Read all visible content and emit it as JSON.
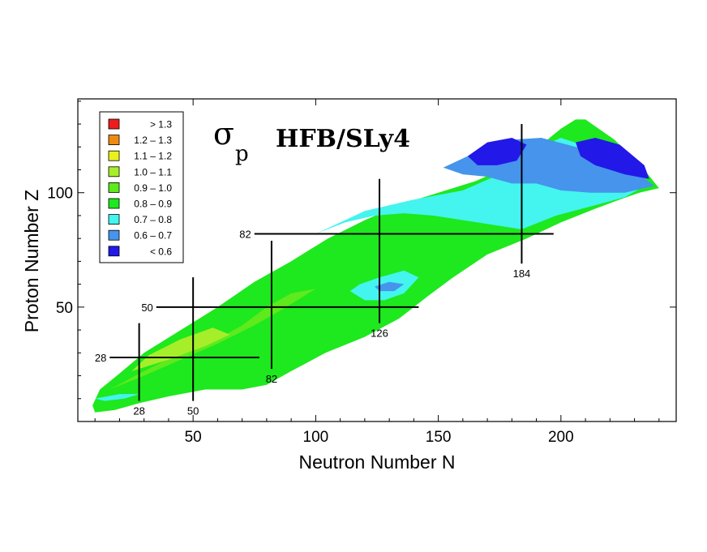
{
  "chart_data": {
    "type": "heatmap",
    "title_symbol": "σ",
    "title_subscript": "p",
    "title_text": "HFB/SLy4",
    "xlabel": "Neutron Number N",
    "ylabel": "Proton Number Z",
    "xlim": [
      3,
      247
    ],
    "ylim": [
      0,
      141
    ],
    "xticks": [
      50,
      100,
      150,
      200
    ],
    "yticks": [
      50,
      100
    ],
    "legend": [
      {
        "label": "> 1.3",
        "color": "#ee1c1c"
      },
      {
        "label": "1.2 – 1.3",
        "color": "#ee8a12"
      },
      {
        "label": "1.1 – 1.2",
        "color": "#eaf01e"
      },
      {
        "label": "1.0 – 1.1",
        "color": "#a6ee2a"
      },
      {
        "label": "0.9 – 1.0",
        "color": "#5eea1c"
      },
      {
        "label": "0.8 – 0.9",
        "color": "#1ee81e"
      },
      {
        "label": "0.7 – 0.8",
        "color": "#44f4ee"
      },
      {
        "label": "0.6 – 0.7",
        "color": "#4694ec"
      },
      {
        "label": "< 0.6",
        "color": "#2218e8"
      }
    ],
    "magic_lines": [
      {
        "orientation": "vertical",
        "value": 28,
        "label": "28",
        "from": 9,
        "to": 43
      },
      {
        "orientation": "vertical",
        "value": 50,
        "label": "50",
        "from": 9,
        "to": 63
      },
      {
        "orientation": "vertical",
        "value": 82,
        "label": "82",
        "from": 23,
        "to": 79
      },
      {
        "orientation": "vertical",
        "value": 126,
        "label": "126",
        "from": 43,
        "to": 106
      },
      {
        "orientation": "vertical",
        "value": 184,
        "label": "184",
        "from": 69,
        "to": 130
      },
      {
        "orientation": "horizontal",
        "value": 28,
        "label": "28",
        "from": 16,
        "to": 77
      },
      {
        "orientation": "horizontal",
        "value": 50,
        "label": "50",
        "from": 35,
        "to": 142
      },
      {
        "orientation": "horizontal",
        "value": 82,
        "label": "82",
        "from": 75,
        "to": 197
      }
    ],
    "regions": [
      {
        "value_bin": "0.8 – 0.9",
        "color": "#1ee81e",
        "outline": [
          [
            9,
            7
          ],
          [
            12,
            14
          ],
          [
            20,
            21
          ],
          [
            30,
            30
          ],
          [
            45,
            40
          ],
          [
            60,
            50
          ],
          [
            75,
            61
          ],
          [
            90,
            70
          ],
          [
            105,
            80
          ],
          [
            120,
            88
          ],
          [
            135,
            95
          ],
          [
            150,
            100
          ],
          [
            165,
            105
          ],
          [
            180,
            112
          ],
          [
            192,
            121
          ],
          [
            200,
            128
          ],
          [
            206,
            132
          ],
          [
            210,
            132
          ],
          [
            222,
            123
          ],
          [
            234,
            110
          ],
          [
            240,
            102
          ],
          [
            232,
            100
          ],
          [
            224,
            97
          ],
          [
            214,
            93
          ],
          [
            200,
            87
          ],
          [
            186,
            80
          ],
          [
            170,
            73
          ],
          [
            156,
            63
          ],
          [
            146,
            55
          ],
          [
            134,
            45
          ],
          [
            120,
            37
          ],
          [
            104,
            30
          ],
          [
            90,
            22
          ],
          [
            80,
            16
          ],
          [
            70,
            14
          ],
          [
            55,
            14
          ],
          [
            40,
            11
          ],
          [
            28,
            8
          ],
          [
            18,
            5
          ],
          [
            10,
            4
          ]
        ]
      },
      {
        "value_bin": "0.9 – 1.0",
        "color": "#5eea1c",
        "outline": [
          [
            16,
            14
          ],
          [
            30,
            20
          ],
          [
            45,
            27
          ],
          [
            60,
            34
          ],
          [
            75,
            42
          ],
          [
            88,
            50
          ],
          [
            100,
            58
          ],
          [
            110,
            64
          ],
          [
            100,
            58
          ],
          [
            90,
            56
          ],
          [
            80,
            50
          ],
          [
            70,
            42
          ],
          [
            60,
            36
          ],
          [
            45,
            30
          ],
          [
            30,
            22
          ]
        ]
      },
      {
        "value_bin": "1.0 – 1.1",
        "color": "#a6ee2a",
        "outline": [
          [
            25,
            22
          ],
          [
            40,
            27
          ],
          [
            55,
            33
          ],
          [
            65,
            38
          ],
          [
            58,
            41
          ],
          [
            45,
            36
          ],
          [
            32,
            29
          ]
        ]
      },
      {
        "value_bin": "0.7 – 0.8",
        "color": "#44f4ee",
        "outline": [
          [
            100,
            82
          ],
          [
            120,
            92
          ],
          [
            140,
            97
          ],
          [
            160,
            101
          ],
          [
            175,
            108
          ],
          [
            188,
            118
          ],
          [
            200,
            124
          ],
          [
            214,
            119
          ],
          [
            224,
            112
          ],
          [
            236,
            104
          ],
          [
            226,
            98
          ],
          [
            212,
            94
          ],
          [
            198,
            90
          ],
          [
            184,
            84
          ],
          [
            172,
            86
          ],
          [
            160,
            88
          ],
          [
            148,
            90
          ],
          [
            136,
            91
          ],
          [
            124,
            90
          ],
          [
            112,
            87
          ]
        ]
      },
      {
        "value_bin": "0.7 – 0.8",
        "color": "#44f4ee",
        "outline": [
          [
            118,
            60
          ],
          [
            126,
            63
          ],
          [
            136,
            66
          ],
          [
            142,
            63
          ],
          [
            136,
            56
          ],
          [
            128,
            53
          ],
          [
            120,
            53
          ],
          [
            114,
            57
          ]
        ]
      },
      {
        "value_bin": "0.7 – 0.8",
        "color": "#44f4ee",
        "outline": [
          [
            10,
            10
          ],
          [
            20,
            12
          ],
          [
            28,
            12
          ],
          [
            22,
            10
          ],
          [
            14,
            9
          ]
        ]
      },
      {
        "value_bin": "0.6 – 0.7",
        "color": "#4694ec",
        "outline": [
          [
            152,
            111
          ],
          [
            164,
            117
          ],
          [
            178,
            123
          ],
          [
            192,
            124
          ],
          [
            206,
            120
          ],
          [
            220,
            116
          ],
          [
            232,
            108
          ],
          [
            238,
            103
          ],
          [
            226,
            100
          ],
          [
            212,
            100
          ],
          [
            200,
            101
          ],
          [
            190,
            104
          ],
          [
            180,
            104
          ],
          [
            170,
            107
          ],
          [
            160,
            108
          ]
        ]
      },
      {
        "value_bin": "0.6 – 0.7",
        "color": "#4694ec",
        "outline": [
          [
            124,
            59
          ],
          [
            130,
            61
          ],
          [
            136,
            60
          ],
          [
            132,
            57
          ],
          [
            126,
            57
          ]
        ]
      },
      {
        "value_bin": "< 0.6",
        "color": "#2218e8",
        "outline": [
          [
            162,
            116
          ],
          [
            170,
            122
          ],
          [
            180,
            124
          ],
          [
            186,
            121
          ],
          [
            182,
            114
          ],
          [
            174,
            112
          ],
          [
            166,
            112
          ]
        ]
      },
      {
        "value_bin": "< 0.6",
        "color": "#2218e8",
        "outline": [
          [
            206,
            122
          ],
          [
            214,
            124
          ],
          [
            224,
            121
          ],
          [
            234,
            112
          ],
          [
            236,
            106
          ],
          [
            226,
            108
          ],
          [
            214,
            112
          ],
          [
            208,
            116
          ]
        ]
      }
    ]
  }
}
